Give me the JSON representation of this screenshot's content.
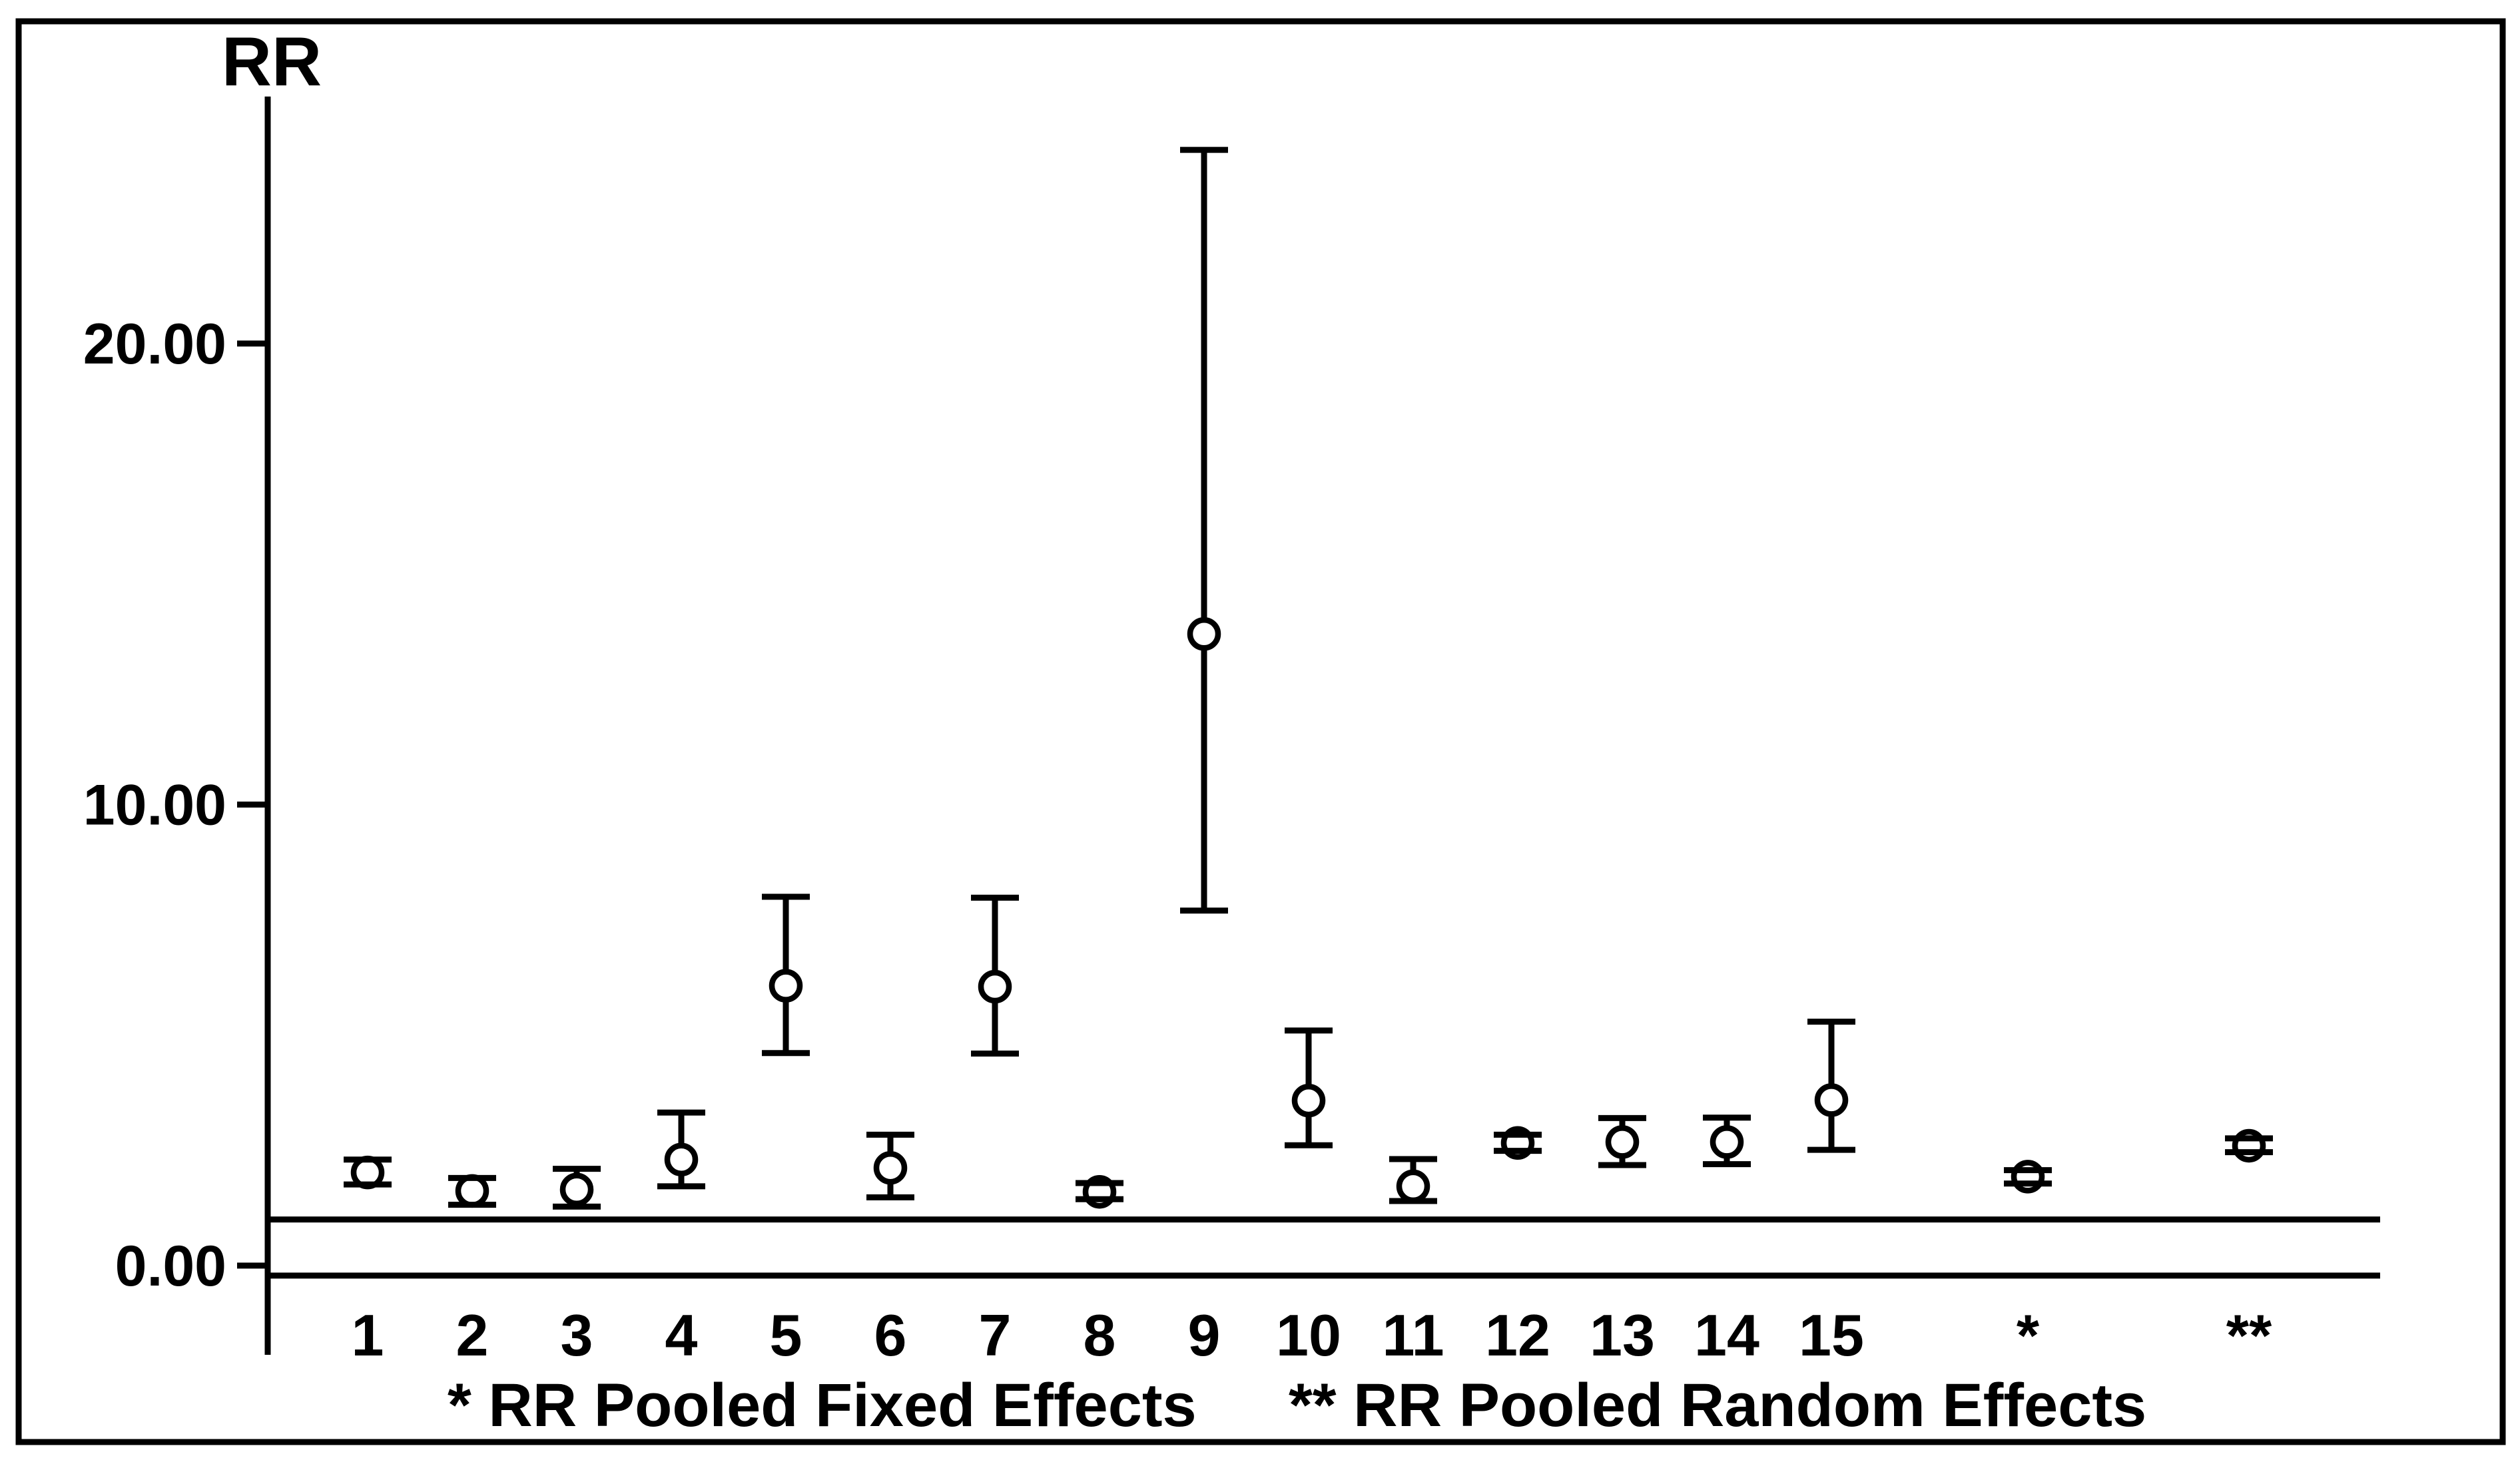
{
  "figure": {
    "title": "RR",
    "background": "#ffffff",
    "ink_color": "#000000",
    "footnotes": {
      "fixed": "* RR Pooled Fixed Effects",
      "random": "** RR Pooled Random Effects"
    }
  },
  "chart_data": {
    "type": "scatter",
    "subtype": "errorbar-forest",
    "title": "RR",
    "xlabel": "",
    "ylabel": "RR",
    "ylim": [
      0,
      25.4
    ],
    "yticks": [
      0,
      10,
      20
    ],
    "ytick_labels": [
      "0.00",
      "10.00",
      "20.00"
    ],
    "reference_line": 1.0,
    "grid": false,
    "legend_position": "none",
    "marker": "open-circle",
    "categories": [
      "1",
      "2",
      "3",
      "4",
      "5",
      "6",
      "7",
      "8",
      "9",
      "10",
      "11",
      "12",
      "13",
      "14",
      "15",
      "*",
      "**"
    ],
    "series": [
      {
        "name": "RR with confidence interval",
        "points": [
          {
            "label": "1",
            "rr": 2.02,
            "lo": 1.76,
            "hi": 2.3,
            "pooled": false
          },
          {
            "label": "2",
            "rr": 1.62,
            "lo": 1.32,
            "hi": 1.9,
            "pooled": false
          },
          {
            "label": "3",
            "rr": 1.65,
            "lo": 1.28,
            "hi": 2.1,
            "pooled": false
          },
          {
            "label": "4",
            "rr": 2.3,
            "lo": 1.72,
            "hi": 3.32,
            "pooled": false
          },
          {
            "label": "5",
            "rr": 6.07,
            "lo": 4.61,
            "hi": 8.0,
            "pooled": false
          },
          {
            "label": "6",
            "rr": 2.12,
            "lo": 1.48,
            "hi": 2.84,
            "pooled": false
          },
          {
            "label": "7",
            "rr": 6.05,
            "lo": 4.6,
            "hi": 7.98,
            "pooled": false
          },
          {
            "label": "8",
            "rr": 1.6,
            "lo": 1.44,
            "hi": 1.79,
            "pooled": false
          },
          {
            "label": "9",
            "rr": 13.7,
            "lo": 7.7,
            "hi": 24.2,
            "pooled": false
          },
          {
            "label": "10",
            "rr": 3.58,
            "lo": 2.61,
            "hi": 5.1,
            "pooled": false
          },
          {
            "label": "11",
            "rr": 1.72,
            "lo": 1.4,
            "hi": 2.31,
            "pooled": false
          },
          {
            "label": "12",
            "rr": 2.66,
            "lo": 2.49,
            "hi": 2.84,
            "pooled": false
          },
          {
            "label": "13",
            "rr": 2.68,
            "lo": 2.18,
            "hi": 3.2,
            "pooled": false
          },
          {
            "label": "14",
            "rr": 2.68,
            "lo": 2.2,
            "hi": 3.21,
            "pooled": false
          },
          {
            "label": "15",
            "rr": 3.59,
            "lo": 2.51,
            "hi": 5.29,
            "pooled": false
          },
          {
            "label": "*",
            "rr": 1.93,
            "lo": 1.78,
            "hi": 2.07,
            "pooled": true
          },
          {
            "label": "**",
            "rr": 2.6,
            "lo": 2.46,
            "hi": 2.76,
            "pooled": true
          }
        ]
      }
    ],
    "annotations": [
      "* RR Pooled Fixed Effects",
      "** RR Pooled Random Effects"
    ]
  }
}
